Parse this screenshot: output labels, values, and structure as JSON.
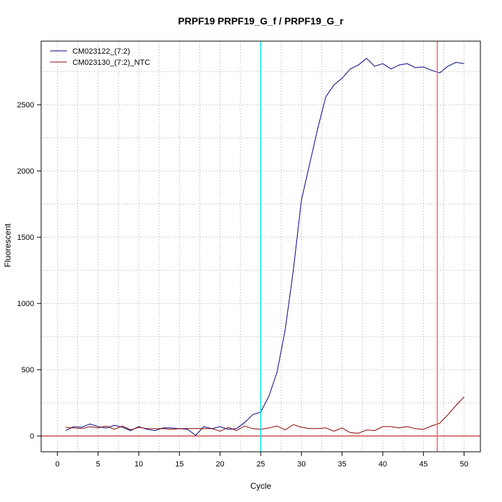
{
  "chart_data": {
    "type": "line",
    "title": "PRPF19  PRPF19_G_f / PRPF19_G_r",
    "xlabel": "Cycle",
    "ylabel": "Fluorescent",
    "xlim": [
      -2,
      52
    ],
    "ylim": [
      -120,
      2980
    ],
    "x_ticks": [
      0,
      5,
      10,
      15,
      20,
      25,
      30,
      35,
      40,
      45,
      50
    ],
    "y_ticks": [
      0,
      500,
      1000,
      1500,
      2000,
      2500
    ],
    "grid": true,
    "legend_position": "top-left",
    "series": [
      {
        "name": "CM023122_(7:2)",
        "color": "#000080",
        "x": [
          1,
          2,
          3,
          4,
          5,
          6,
          7,
          8,
          9,
          10,
          11,
          12,
          13,
          14,
          15,
          16,
          17,
          18,
          19,
          20,
          21,
          22,
          23,
          24,
          25,
          26,
          27,
          28,
          29,
          30,
          31,
          32,
          33,
          34,
          35,
          36,
          37,
          38,
          39,
          40,
          41,
          42,
          43,
          44,
          45,
          46,
          47,
          48,
          49,
          50
        ],
        "y": [
          40,
          70,
          65,
          90,
          70,
          60,
          80,
          65,
          40,
          70,
          50,
          40,
          60,
          60,
          55,
          50,
          5,
          70,
          55,
          70,
          50,
          55,
          100,
          160,
          180,
          300,
          480,
          800,
          1250,
          1780,
          2050,
          2320,
          2560,
          2650,
          2700,
          2770,
          2800,
          2850,
          2790,
          2810,
          2770,
          2800,
          2810,
          2780,
          2785,
          2760,
          2740,
          2790,
          2820,
          2810
        ]
      },
      {
        "name": "CM023130_(7:2)_NTC",
        "color": "#8B0000",
        "x": [
          1,
          2,
          3,
          4,
          5,
          6,
          7,
          8,
          9,
          10,
          11,
          12,
          13,
          14,
          15,
          16,
          17,
          18,
          19,
          20,
          21,
          22,
          23,
          24,
          25,
          26,
          27,
          28,
          29,
          30,
          31,
          32,
          33,
          34,
          35,
          36,
          37,
          38,
          39,
          40,
          41,
          42,
          43,
          44,
          45,
          46,
          47,
          48,
          49,
          50
        ],
        "y": [
          65,
          60,
          55,
          70,
          60,
          75,
          50,
          75,
          45,
          65,
          55,
          55,
          55,
          50,
          55,
          55,
          55,
          55,
          55,
          35,
          65,
          40,
          75,
          55,
          50,
          60,
          75,
          45,
          85,
          65,
          55,
          55,
          60,
          35,
          60,
          25,
          20,
          45,
          40,
          70,
          70,
          60,
          70,
          55,
          50,
          75,
          95,
          160,
          230,
          295
        ]
      }
    ],
    "baseline": {
      "y": 0,
      "color": "#C00000"
    },
    "threshold_lines": [
      {
        "x": 25,
        "color": "#00E5EE"
      },
      {
        "x": 46.7,
        "color": "#E07070"
      }
    ]
  }
}
